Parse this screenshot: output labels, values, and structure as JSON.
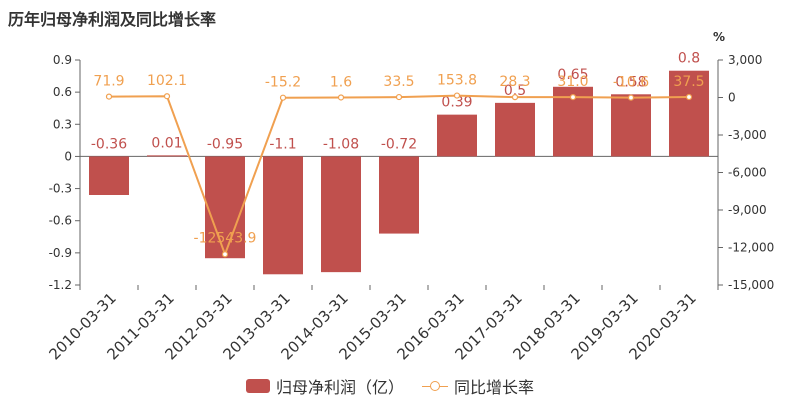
{
  "chart_data": {
    "type": "bar",
    "title": "历年归母净利润及同比增长率",
    "categories": [
      "2010-03-31",
      "2011-03-31",
      "2012-03-31",
      "2013-03-31",
      "2014-03-31",
      "2015-03-31",
      "2016-03-31",
      "2017-03-31",
      "2018-03-31",
      "2019-03-31",
      "2020-03-31"
    ],
    "series": [
      {
        "name": "归母净利润（亿）",
        "type": "bar",
        "axis": "left",
        "color": "#c0504d",
        "values": [
          -0.36,
          0.01,
          -0.95,
          -1.1,
          -1.08,
          -0.72,
          0.39,
          0.5,
          0.65,
          0.58,
          0.8
        ],
        "labels": [
          "-0.36",
          "0.01",
          "-0.95",
          "-1.1",
          "-1.08",
          "-0.72",
          "0.39",
          "0.5",
          "0.65",
          "0.58",
          "0.8"
        ]
      },
      {
        "name": "同比增长率",
        "type": "line",
        "axis": "right",
        "color": "#f0a050",
        "values": [
          71.9,
          102.1,
          -12543.9,
          -15.2,
          1.6,
          33.5,
          153.8,
          28.3,
          31.0,
          -10.6,
          37.5
        ],
        "labels": [
          "71.9",
          "102.1",
          "-12543.9",
          "-15.2",
          "1.6",
          "33.5",
          "153.8",
          "28.3",
          "31.0",
          "-10.6",
          "37.5"
        ]
      }
    ],
    "y_left": {
      "ylim": [
        -1.2,
        0.9
      ],
      "ticks": [
        "0.9",
        "0.6",
        "0.3",
        "0",
        "-0.3",
        "-0.6",
        "-0.9",
        "-1.2"
      ]
    },
    "y_right": {
      "label": "%",
      "ylim": [
        -15000,
        3000
      ],
      "ticks": [
        "3,000",
        "0",
        "-3,000",
        "-6,000",
        "-9,000",
        "-12,000",
        "-15,000"
      ]
    },
    "grid": false,
    "legend": "bottom"
  }
}
